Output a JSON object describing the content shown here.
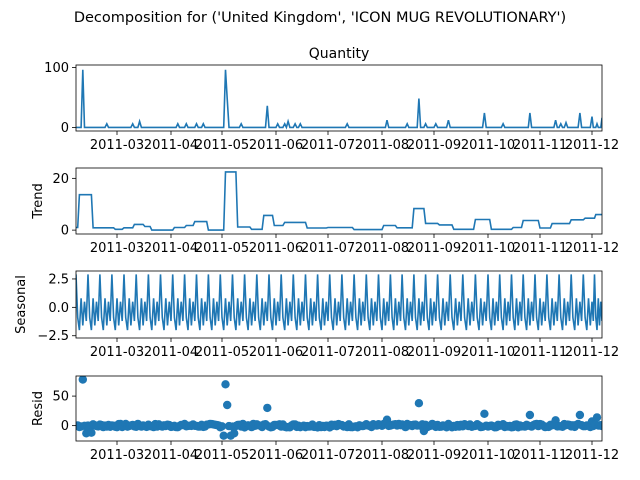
{
  "title": "Decomposition for ('United Kingdom', 'ICON MUG REVOLUTIONARY')",
  "colors": {
    "line": "#1f77b4",
    "baseline": "#000000"
  },
  "x_tick_labels": [
    "2011-03",
    "2011-04",
    "2011-05",
    "2011-06",
    "2011-07",
    "2011-08",
    "2011-09",
    "2011-10",
    "2011-11",
    "2011-12"
  ],
  "chart_data": [
    {
      "panel": "observed",
      "type": "line",
      "title": "Quantity",
      "ylabel": "",
      "x_range": [
        "2011-02-05",
        "2011-12-09"
      ],
      "ylim": [
        -6,
        104
      ],
      "yticks": [
        0,
        100
      ],
      "spikes": [
        {
          "x": "2011-02-09",
          "y": 96
        },
        {
          "x": "2011-02-23",
          "y": 6
        },
        {
          "x": "2011-03-10",
          "y": 6
        },
        {
          "x": "2011-03-14",
          "y": 10
        },
        {
          "x": "2011-04-05",
          "y": 6
        },
        {
          "x": "2011-04-10",
          "y": 6
        },
        {
          "x": "2011-04-16",
          "y": 6
        },
        {
          "x": "2011-04-20",
          "y": 6
        },
        {
          "x": "2011-05-03",
          "y": 96
        },
        {
          "x": "2011-05-04",
          "y": 48
        },
        {
          "x": "2011-05-12",
          "y": 6
        },
        {
          "x": "2011-05-27",
          "y": 36
        },
        {
          "x": "2011-06-02",
          "y": 6
        },
        {
          "x": "2011-06-06",
          "y": 6
        },
        {
          "x": "2011-06-08",
          "y": 10
        },
        {
          "x": "2011-06-12",
          "y": 6
        },
        {
          "x": "2011-06-15",
          "y": 6
        },
        {
          "x": "2011-07-12",
          "y": 6
        },
        {
          "x": "2011-08-04",
          "y": 12
        },
        {
          "x": "2011-08-16",
          "y": 6
        },
        {
          "x": "2011-08-23",
          "y": 48
        },
        {
          "x": "2011-08-27",
          "y": 6
        },
        {
          "x": "2011-09-02",
          "y": 6
        },
        {
          "x": "2011-09-09",
          "y": 12
        },
        {
          "x": "2011-09-29",
          "y": 24
        },
        {
          "x": "2011-10-10",
          "y": 6
        },
        {
          "x": "2011-10-26",
          "y": 24
        },
        {
          "x": "2011-11-10",
          "y": 12
        },
        {
          "x": "2011-11-13",
          "y": 6
        },
        {
          "x": "2011-11-16",
          "y": 8
        },
        {
          "x": "2011-11-24",
          "y": 24
        },
        {
          "x": "2011-12-01",
          "y": 18
        },
        {
          "x": "2011-12-05",
          "y": 6
        },
        {
          "x": "2011-12-09",
          "y": 16
        }
      ]
    },
    {
      "panel": "trend",
      "type": "line",
      "ylabel": "Trend",
      "ylim": [
        -1.5,
        24
      ],
      "yticks": [
        0,
        20
      ],
      "segments": [
        {
          "x0": "2011-02-05",
          "x1": "2011-02-06",
          "y": 1.0
        },
        {
          "x0": "2011-02-07",
          "x1": "2011-02-14",
          "y": 13.7
        },
        {
          "x0": "2011-02-15",
          "x1": "2011-02-27",
          "y": 0.9
        },
        {
          "x0": "2011-02-28",
          "x1": "2011-03-04",
          "y": 0.3
        },
        {
          "x0": "2011-03-05",
          "x1": "2011-03-10",
          "y": 0.9
        },
        {
          "x0": "2011-03-11",
          "x1": "2011-03-16",
          "y": 2.2
        },
        {
          "x0": "2011-03-17",
          "x1": "2011-03-20",
          "y": 1.4
        },
        {
          "x0": "2011-03-21",
          "x1": "2011-04-02",
          "y": 0.0
        },
        {
          "x0": "2011-04-03",
          "x1": "2011-04-09",
          "y": 1.0
        },
        {
          "x0": "2011-04-10",
          "x1": "2011-04-14",
          "y": 1.8
        },
        {
          "x0": "2011-04-15",
          "x1": "2011-04-22",
          "y": 3.3
        },
        {
          "x0": "2011-04-23",
          "x1": "2011-05-02",
          "y": 0.0
        },
        {
          "x0": "2011-05-03",
          "x1": "2011-05-09",
          "y": 22.5
        },
        {
          "x0": "2011-05-10",
          "x1": "2011-05-17",
          "y": 1.2
        },
        {
          "x0": "2011-05-18",
          "x1": "2011-05-24",
          "y": 0.3
        },
        {
          "x0": "2011-05-25",
          "x1": "2011-05-30",
          "y": 5.7
        },
        {
          "x0": "2011-05-31",
          "x1": "2011-06-05",
          "y": 1.8
        },
        {
          "x0": "2011-06-06",
          "x1": "2011-06-18",
          "y": 3.0
        },
        {
          "x0": "2011-06-19",
          "x1": "2011-06-30",
          "y": 0.8
        },
        {
          "x0": "2011-07-01",
          "x1": "2011-07-15",
          "y": 1.0
        },
        {
          "x0": "2011-07-16",
          "x1": "2011-08-01",
          "y": 0.2
        },
        {
          "x0": "2011-08-02",
          "x1": "2011-08-09",
          "y": 1.8
        },
        {
          "x0": "2011-08-10",
          "x1": "2011-08-19",
          "y": 0.9
        },
        {
          "x0": "2011-08-20",
          "x1": "2011-08-26",
          "y": 8.3
        },
        {
          "x0": "2011-08-27",
          "x1": "2011-09-03",
          "y": 2.6
        },
        {
          "x0": "2011-09-04",
          "x1": "2011-09-11",
          "y": 2.0
        },
        {
          "x0": "2011-09-12",
          "x1": "2011-09-23",
          "y": 0.3
        },
        {
          "x0": "2011-09-24",
          "x1": "2011-10-02",
          "y": 4.1
        },
        {
          "x0": "2011-10-03",
          "x1": "2011-10-15",
          "y": 0.3
        },
        {
          "x0": "2011-10-16",
          "x1": "2011-10-21",
          "y": 1.0
        },
        {
          "x0": "2011-10-22",
          "x1": "2011-10-31",
          "y": 3.7
        },
        {
          "x0": "2011-11-01",
          "x1": "2011-11-07",
          "y": 0.8
        },
        {
          "x0": "2011-11-08",
          "x1": "2011-11-18",
          "y": 2.5
        },
        {
          "x0": "2011-11-19",
          "x1": "2011-11-26",
          "y": 4.0
        },
        {
          "x0": "2011-11-27",
          "x1": "2011-12-03",
          "y": 4.6
        },
        {
          "x0": "2011-12-04",
          "x1": "2011-12-09",
          "y": 6.0
        }
      ]
    },
    {
      "panel": "seasonal",
      "type": "line",
      "ylabel": "Seasonal",
      "ylim": [
        -2.7,
        3.2
      ],
      "yticks": [
        -2.5,
        0.0,
        2.5
      ],
      "tick_labels": [
        "−2.5",
        "0.0",
        "2.5"
      ],
      "period_days": 7,
      "pattern": [
        2.9,
        -0.9,
        -2.0,
        0.8,
        -1.6,
        0.5,
        -1.2
      ]
    },
    {
      "panel": "resid",
      "type": "scatter",
      "ylabel": "Resid",
      "ylim": [
        -26,
        84
      ],
      "yticks": [
        0,
        50
      ],
      "baseline": 0,
      "outliers": [
        {
          "x": "2011-02-09",
          "y": 78
        },
        {
          "x": "2011-02-11",
          "y": -13
        },
        {
          "x": "2011-02-14",
          "y": -12
        },
        {
          "x": "2011-05-03",
          "y": 70
        },
        {
          "x": "2011-05-04",
          "y": 35
        },
        {
          "x": "2011-05-02",
          "y": -17
        },
        {
          "x": "2011-05-06",
          "y": -17
        },
        {
          "x": "2011-05-08",
          "y": -13
        },
        {
          "x": "2011-05-27",
          "y": 30
        },
        {
          "x": "2011-08-04",
          "y": 10
        },
        {
          "x": "2011-08-23",
          "y": 38
        },
        {
          "x": "2011-08-26",
          "y": -9
        },
        {
          "x": "2011-09-29",
          "y": 20
        },
        {
          "x": "2011-10-26",
          "y": 18
        },
        {
          "x": "2011-11-10",
          "y": 9
        },
        {
          "x": "2011-11-24",
          "y": 18
        },
        {
          "x": "2011-12-05",
          "y": 14
        },
        {
          "x": "2011-12-01",
          "y": 7
        }
      ],
      "noise_amplitude": 3
    }
  ]
}
